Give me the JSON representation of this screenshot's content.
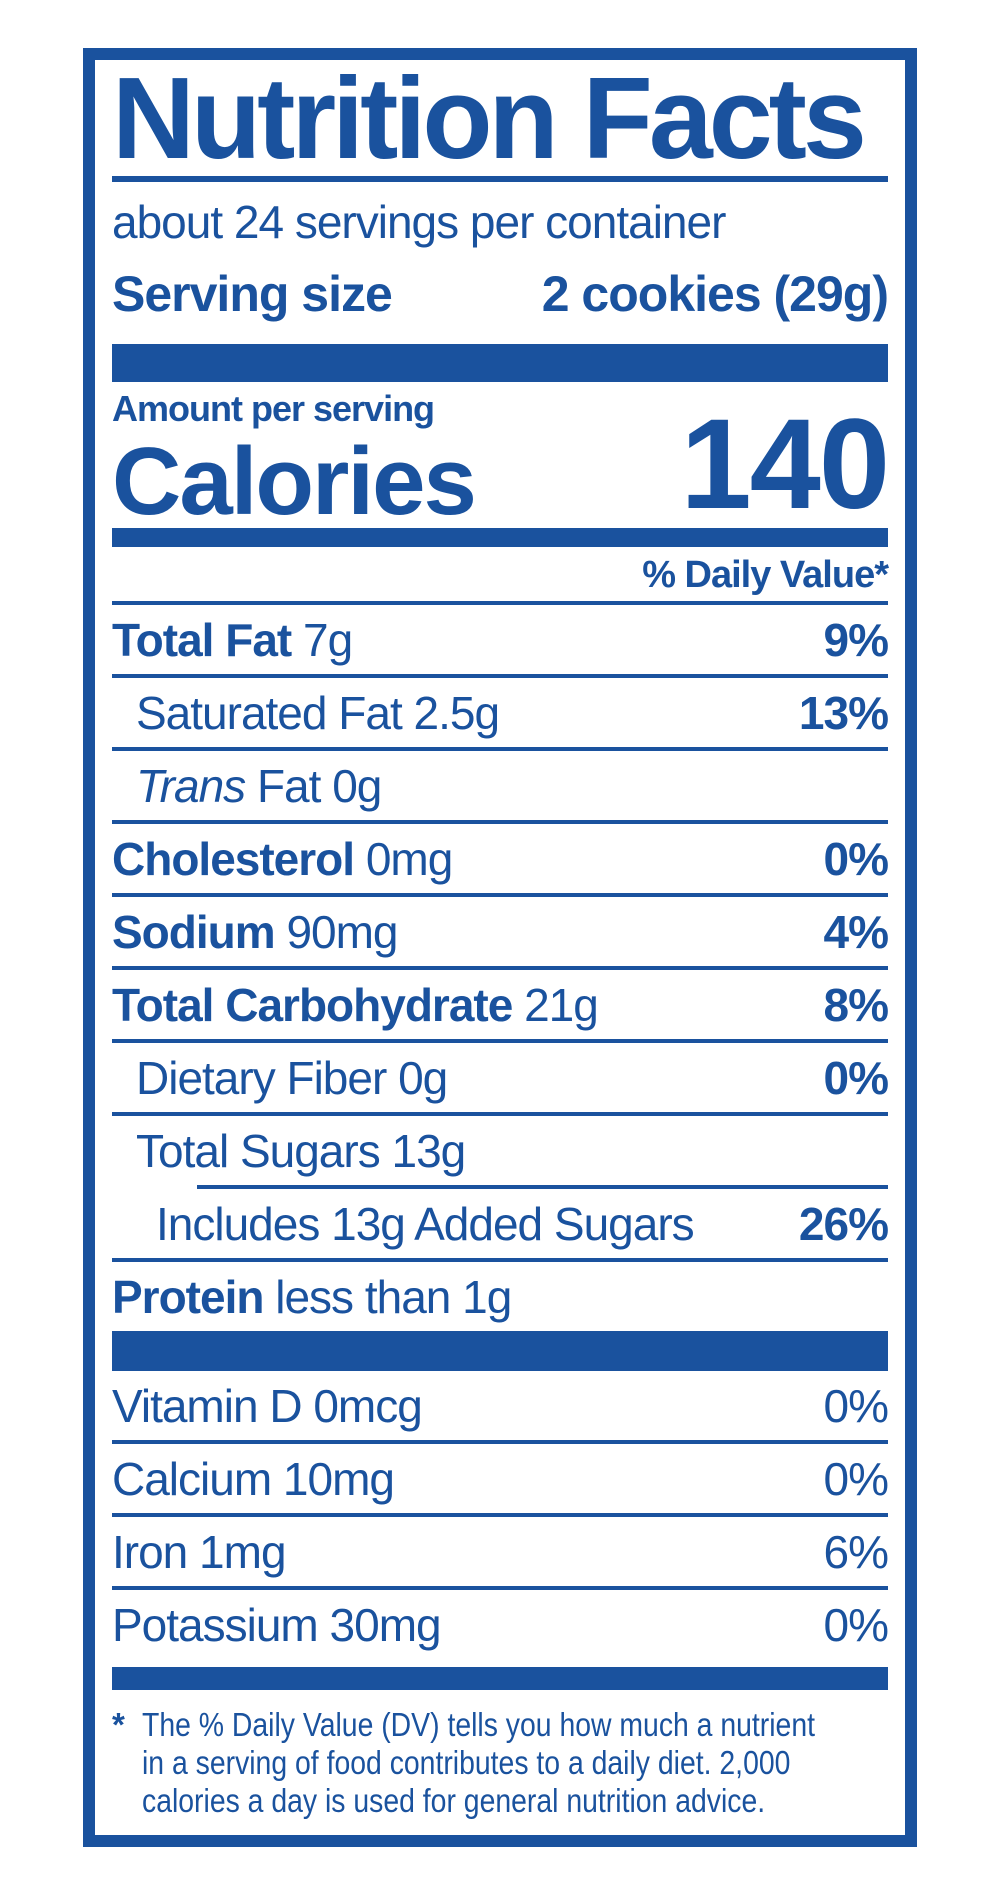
{
  "colors": {
    "label_blue": "#1A529E",
    "background": "#FFFFFF"
  },
  "label": {
    "title": "Nutrition Facts",
    "servings_per_container": "about 24 servings per container",
    "serving_size": {
      "label": "Serving size",
      "value": "2 cookies (29g)"
    },
    "amount_per_serving": "Amount per serving",
    "calories": {
      "label": "Calories",
      "value": "140"
    },
    "daily_value_header": "% Daily Value*",
    "nutrients": [
      {
        "name": "Total Fat",
        "amount": "7g",
        "dv": "9%",
        "dv_bold": true,
        "name_style": "bold",
        "indent": 0,
        "rule_after": "full"
      },
      {
        "name": "Saturated Fat",
        "amount": "2.5g",
        "dv": "13%",
        "dv_bold": true,
        "name_style": "regular",
        "indent": 1,
        "rule_after": "full"
      },
      {
        "name": "Trans",
        "amount": "Fat 0g",
        "dv": "",
        "dv_bold": false,
        "name_style": "italic",
        "indent": 1,
        "rule_after": "full"
      },
      {
        "name": "Cholesterol",
        "amount": "0mg",
        "dv": "0%",
        "dv_bold": true,
        "name_style": "bold",
        "indent": 0,
        "rule_after": "full"
      },
      {
        "name": "Sodium",
        "amount": "90mg",
        "dv": "4%",
        "dv_bold": true,
        "name_style": "bold",
        "indent": 0,
        "rule_after": "full"
      },
      {
        "name": "Total Carbohydrate",
        "amount": "21g",
        "dv": "8%",
        "dv_bold": true,
        "name_style": "bold",
        "indent": 0,
        "rule_after": "full"
      },
      {
        "name": "Dietary Fiber",
        "amount": "0g",
        "dv": "0%",
        "dv_bold": true,
        "name_style": "regular",
        "indent": 1,
        "rule_after": "full"
      },
      {
        "name": "Total Sugars",
        "amount": "13g",
        "dv": "",
        "dv_bold": false,
        "name_style": "regular",
        "indent": 1,
        "rule_after": "indent"
      },
      {
        "name": "Includes 13g Added Sugars",
        "amount": "",
        "dv": "26%",
        "dv_bold": true,
        "name_style": "regular",
        "indent": 2,
        "rule_after": "full"
      },
      {
        "name": "Protein",
        "amount": "less than 1g",
        "dv": "",
        "dv_bold": false,
        "name_style": "bold",
        "indent": 0,
        "rule_after": "none"
      }
    ],
    "vitamins": [
      {
        "name": "Vitamin D",
        "amount": "0mcg",
        "dv": "0%",
        "dv_bold": false,
        "name_style": "regular",
        "indent": 0,
        "rule_after": "full"
      },
      {
        "name": "Calcium",
        "amount": "10mg",
        "dv": "0%",
        "dv_bold": false,
        "name_style": "regular",
        "indent": 0,
        "rule_after": "full"
      },
      {
        "name": "Iron",
        "amount": "1mg",
        "dv": "6%",
        "dv_bold": false,
        "name_style": "regular",
        "indent": 0,
        "rule_after": "full"
      },
      {
        "name": "Potassium",
        "amount": "30mg",
        "dv": "0%",
        "dv_bold": false,
        "name_style": "regular",
        "indent": 0,
        "rule_after": "none"
      }
    ],
    "footnote": {
      "marker": "*",
      "lines": [
        "The % Daily Value (DV) tells you how much a nutrient",
        "in a serving of food contributes to a daily diet. 2,000",
        "calories a day is used for general nutrition advice."
      ]
    }
  }
}
